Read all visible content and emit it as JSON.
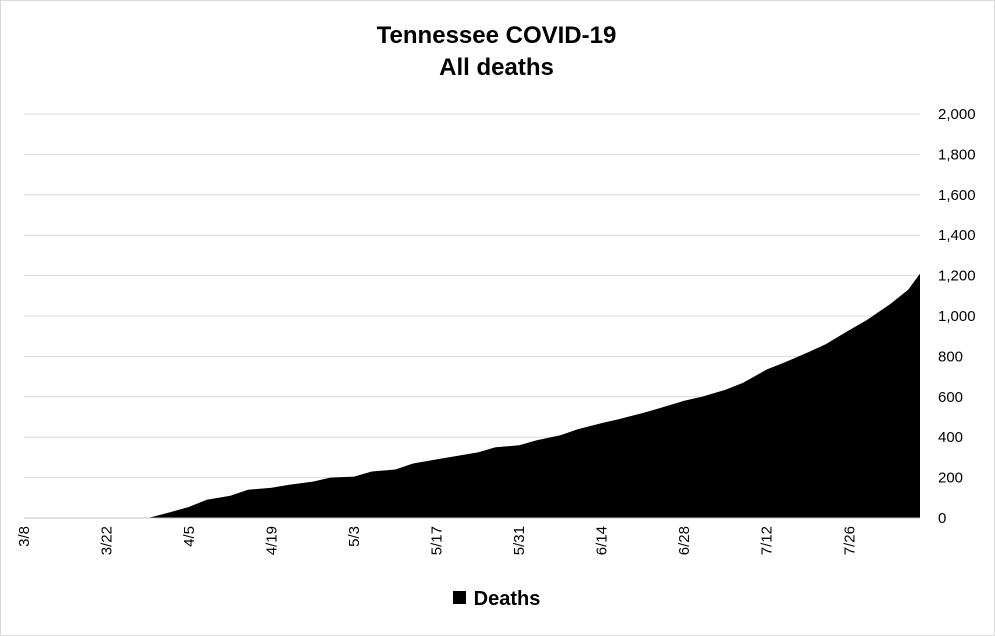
{
  "chart_data": {
    "type": "area",
    "title": "Tennessee COVID-19",
    "subtitle": "All deaths",
    "x_ticks": [
      "3/8",
      "3/22",
      "4/5",
      "4/19",
      "5/3",
      "5/17",
      "5/31",
      "6/14",
      "6/28",
      "7/12",
      "7/26"
    ],
    "y_ticks": [
      "0",
      "200",
      "400",
      "600",
      "800",
      "1,000",
      "1,200",
      "1,400",
      "1,600",
      "1,800",
      "2,000"
    ],
    "ylim": [
      0,
      2000
    ],
    "y_axis_side": "right",
    "grid": "horizontal",
    "legend_position": "bottom",
    "series": [
      {
        "name": "Deaths",
        "color": "#000000",
        "x": [
          "3/8",
          "3/15",
          "3/22",
          "3/29",
          "3/31",
          "4/2",
          "4/5",
          "4/8",
          "4/12",
          "4/15",
          "4/19",
          "4/22",
          "4/26",
          "4/29",
          "5/3",
          "5/6",
          "5/10",
          "5/13",
          "5/17",
          "5/20",
          "5/24",
          "5/27",
          "5/31",
          "6/3",
          "6/7",
          "6/10",
          "6/14",
          "6/17",
          "6/21",
          "6/24",
          "6/28",
          "7/1",
          "7/5",
          "7/8",
          "7/12",
          "7/15",
          "7/19",
          "7/22",
          "7/26",
          "7/29",
          "8/2",
          "8/5",
          "8/7"
        ],
        "y": [
          0,
          0,
          0,
          0,
          15,
          30,
          55,
          90,
          110,
          140,
          150,
          165,
          180,
          200,
          205,
          230,
          240,
          270,
          290,
          305,
          325,
          350,
          360,
          385,
          410,
          440,
          470,
          490,
          520,
          545,
          580,
          600,
          635,
          670,
          735,
          770,
          820,
          860,
          930,
          980,
          1060,
          1130,
          1210
        ]
      }
    ]
  }
}
